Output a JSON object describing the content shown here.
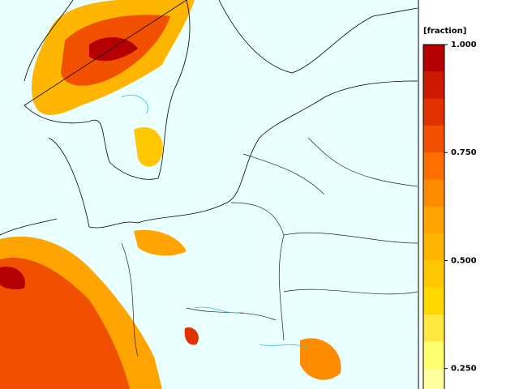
{
  "colorbar": {
    "title": "[fraction]",
    "lim": [
      0.1875,
      1
    ],
    "ticks": [
      {
        "value": 1,
        "label": "1.000"
      },
      {
        "value": 0.75,
        "label": "0.750"
      },
      {
        "value": 0.5,
        "label": "0.500"
      },
      {
        "value": 0.25,
        "label": "0.250"
      }
    ],
    "colors": [
      "#b40000",
      "#cc1a00",
      "#e03200",
      "#f05000",
      "#ff6e00",
      "#ff8c00",
      "#ffa400",
      "#ffb600",
      "#ffc800",
      "#ffd800",
      "#ffe840",
      "#ffff70",
      "#ffffa0"
    ]
  }
}
